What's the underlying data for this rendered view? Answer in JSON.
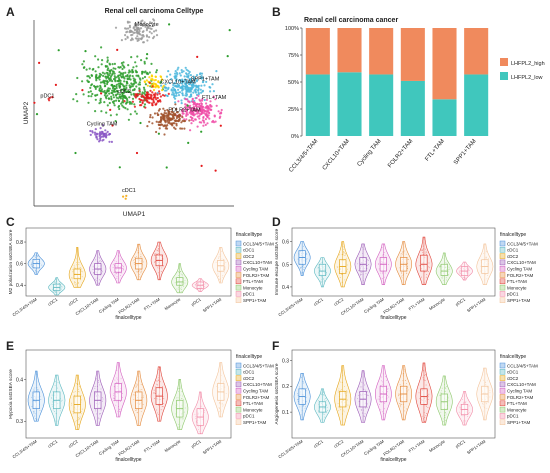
{
  "panel_letters": [
    "A",
    "B",
    "C",
    "D",
    "E",
    "F"
  ],
  "chart_data": [
    {
      "panel": "A",
      "type": "scatter",
      "title": "Renal cell carcinoma Celltype",
      "xlabel": "UMAP1",
      "ylabel": "UMAP2",
      "legend": "none",
      "cluster_labels": [
        "Monocyte",
        "CXCL10+TAM",
        "SPP1+TAM",
        "FTL+TAM",
        "cDC2",
        "FOLR2+TAM",
        "pDC1",
        "Cycling TAM",
        "cDC1"
      ],
      "clusters": [
        {
          "name": "Monocyte",
          "color": "#9b9b9b",
          "center": [
            0.7,
            5.7
          ],
          "spread": [
            0.9,
            0.55
          ],
          "n": 110
        },
        {
          "name": "cDC2",
          "color": "#2e9e2e",
          "center": [
            -0.6,
            2.2
          ],
          "spread": [
            1.8,
            1.3
          ],
          "n": 420
        },
        {
          "name": "CXCL10+TAM",
          "color": "#ffd200",
          "center": [
            1.5,
            2.4
          ],
          "spread": [
            0.45,
            0.4
          ],
          "n": 45
        },
        {
          "name": "SPP1+TAM",
          "color": "#4bb7dd",
          "center": [
            3.5,
            2.2
          ],
          "spread": [
            1.1,
            0.8
          ],
          "n": 230
        },
        {
          "name": "FTL+TAM",
          "color": "#f04fa8",
          "center": [
            4.3,
            0.5
          ],
          "spread": [
            1.0,
            0.7
          ],
          "n": 200
        },
        {
          "name": "FOLR2+TAM",
          "color": "#a0522d",
          "center": [
            2.4,
            0.1
          ],
          "spread": [
            0.9,
            0.6
          ],
          "n": 150
        },
        {
          "name": "CCL3/4/5+TAM",
          "color": "#e41a1c",
          "center": [
            1.2,
            1.4
          ],
          "spread": [
            0.8,
            0.5
          ],
          "n": 90
        },
        {
          "name": "Cycling TAM",
          "color": "#8a56c4",
          "center": [
            -1.8,
            -1.0
          ],
          "spread": [
            0.5,
            0.4
          ],
          "n": 50
        },
        {
          "name": "pDC1",
          "color": "#e41a1c",
          "center": [
            -5.0,
            1.3
          ],
          "spread": [
            0.15,
            0.15
          ],
          "n": 5
        },
        {
          "name": "cDC1",
          "color": "#f5a300",
          "center": [
            -0.3,
            -5.0
          ],
          "spread": [
            0.1,
            0.1
          ],
          "n": 3
        }
      ]
    },
    {
      "panel": "B",
      "type": "bar",
      "title": "Renal cell carcinoma cancer",
      "categories": [
        "CCL3/4/5+TAM",
        "CXCL10+TAM",
        "Cycling TAM",
        "FOLR2+TAM",
        "FTL+TAM",
        "SPP1+TAM"
      ],
      "y_ticks": [
        "0%",
        "25%",
        "50%",
        "75%",
        "100%"
      ],
      "ylim": [
        0,
        100
      ],
      "legend": "right",
      "series": [
        {
          "name": "LHFPL2_low",
          "color": "#40c7bd",
          "values": [
            57,
            59,
            57,
            51,
            34,
            57
          ]
        },
        {
          "name": "LHFPL2_high",
          "color": "#f08a5d",
          "values": [
            43,
            41,
            43,
            49,
            66,
            43
          ]
        }
      ]
    },
    {
      "panel": "C",
      "type": "violin",
      "xlabel": "finalcelltype",
      "ylabel": "M2 polarization ssGSEA score",
      "y_ticks": [
        0.4,
        0.6,
        0.8
      ],
      "ylim": [
        0.3,
        0.93
      ],
      "legend_title": "finalcelltype",
      "categories": [
        "CCL3/4/5+TAM",
        "cDC1",
        "cDC2",
        "CXCL10+TAM",
        "Cycling TAM",
        "FOLR2+TAM",
        "FTL+TAM",
        "Monocyte",
        "pDC1",
        "SPP1+TAM"
      ],
      "colors": [
        "#4a90d9",
        "#5bb8c0",
        "#e6a619",
        "#9b59b6",
        "#d35fc0",
        "#e48a3c",
        "#e0443a",
        "#8dc86b",
        "#f28ca8",
        "#f3c49b"
      ],
      "medians": [
        0.6,
        0.38,
        0.5,
        0.55,
        0.56,
        0.6,
        0.63,
        0.43,
        0.4,
        0.58
      ],
      "q1": [
        0.56,
        0.35,
        0.46,
        0.5,
        0.52,
        0.55,
        0.58,
        0.4,
        0.37,
        0.53
      ],
      "q3": [
        0.64,
        0.41,
        0.55,
        0.6,
        0.6,
        0.65,
        0.68,
        0.47,
        0.43,
        0.63
      ],
      "mins": [
        0.5,
        0.31,
        0.38,
        0.4,
        0.42,
        0.45,
        0.45,
        0.33,
        0.34,
        0.42
      ],
      "maxs": [
        0.7,
        0.47,
        0.75,
        0.72,
        0.72,
        0.78,
        0.8,
        0.6,
        0.46,
        0.75
      ]
    },
    {
      "panel": "D",
      "type": "violin",
      "xlabel": "finalcelltype",
      "ylabel": "Immune escape ssGSEA score",
      "y_ticks": [
        0.4,
        0.5,
        0.6
      ],
      "ylim": [
        0.36,
        0.66
      ],
      "legend_title": "finalcelltype",
      "categories": [
        "CCL3/4/5+TAM",
        "cDC1",
        "cDC2",
        "CXCL10+TAM",
        "Cycling TAM",
        "FOLR2+TAM",
        "FTL+TAM",
        "Monocyte",
        "pDC1",
        "SPP1+TAM"
      ],
      "colors": [
        "#4a90d9",
        "#5bb8c0",
        "#e6a619",
        "#9b59b6",
        "#d35fc0",
        "#e48a3c",
        "#e0443a",
        "#8dc86b",
        "#f28ca8",
        "#f3c49b"
      ],
      "medians": [
        0.53,
        0.47,
        0.49,
        0.5,
        0.5,
        0.5,
        0.5,
        0.47,
        0.47,
        0.49
      ],
      "q1": [
        0.5,
        0.45,
        0.46,
        0.47,
        0.47,
        0.47,
        0.47,
        0.45,
        0.45,
        0.46
      ],
      "q3": [
        0.56,
        0.5,
        0.52,
        0.53,
        0.53,
        0.53,
        0.54,
        0.5,
        0.49,
        0.52
      ],
      "mins": [
        0.45,
        0.4,
        0.4,
        0.41,
        0.41,
        0.41,
        0.41,
        0.41,
        0.43,
        0.41
      ],
      "maxs": [
        0.6,
        0.53,
        0.6,
        0.59,
        0.59,
        0.6,
        0.62,
        0.55,
        0.51,
        0.59
      ]
    },
    {
      "panel": "E",
      "type": "violin",
      "xlabel": "finalcelltype",
      "ylabel": "Hypoxia ssGSEA score",
      "y_ticks": [
        0.3,
        0.4
      ],
      "ylim": [
        0.26,
        0.47
      ],
      "legend_title": "finalcelltype",
      "categories": [
        "CCL3/4/5+TAM",
        "cDC1",
        "cDC2",
        "CXCL10+TAM",
        "Cycling TAM",
        "FOLR2+TAM",
        "FTL+TAM",
        "Monocyte",
        "pDC1",
        "SPP1+TAM"
      ],
      "colors": [
        "#4a90d9",
        "#5bb8c0",
        "#e6a619",
        "#9b59b6",
        "#d35fc0",
        "#e48a3c",
        "#e0443a",
        "#8dc86b",
        "#f28ca8",
        "#f3c49b"
      ],
      "medians": [
        0.35,
        0.35,
        0.34,
        0.35,
        0.37,
        0.35,
        0.36,
        0.33,
        0.31,
        0.37
      ],
      "q1": [
        0.33,
        0.33,
        0.32,
        0.33,
        0.35,
        0.33,
        0.34,
        0.31,
        0.29,
        0.35
      ],
      "q3": [
        0.37,
        0.37,
        0.36,
        0.37,
        0.39,
        0.37,
        0.38,
        0.35,
        0.33,
        0.39
      ],
      "mins": [
        0.3,
        0.29,
        0.28,
        0.29,
        0.31,
        0.29,
        0.3,
        0.28,
        0.27,
        0.31
      ],
      "maxs": [
        0.42,
        0.41,
        0.41,
        0.42,
        0.44,
        0.42,
        0.43,
        0.4,
        0.37,
        0.44
      ]
    },
    {
      "panel": "F",
      "type": "violin",
      "xlabel": "finalcelltype",
      "ylabel": "Angiogenesis ssGSEA score",
      "y_ticks": [
        0.1,
        0.2,
        0.3
      ],
      "ylim": [
        0.0,
        0.34
      ],
      "legend_title": "finalcelltype",
      "categories": [
        "CCL3/4/5+TAM",
        "cDC1",
        "cDC2",
        "CXCL10+TAM",
        "Cycling TAM",
        "FOLR2+TAM",
        "FTL+TAM",
        "Monocyte",
        "pDC1",
        "SPP1+TAM"
      ],
      "colors": [
        "#4a90d9",
        "#5bb8c0",
        "#e6a619",
        "#9b59b6",
        "#d35fc0",
        "#e48a3c",
        "#e0443a",
        "#8dc86b",
        "#f28ca8",
        "#f3c49b"
      ],
      "medians": [
        0.16,
        0.12,
        0.15,
        0.15,
        0.17,
        0.17,
        0.16,
        0.14,
        0.11,
        0.17
      ],
      "q1": [
        0.13,
        0.1,
        0.12,
        0.12,
        0.14,
        0.14,
        0.13,
        0.11,
        0.09,
        0.14
      ],
      "q3": [
        0.19,
        0.14,
        0.18,
        0.18,
        0.2,
        0.2,
        0.19,
        0.17,
        0.13,
        0.2
      ],
      "mins": [
        0.07,
        0.06,
        0.05,
        0.06,
        0.07,
        0.07,
        0.06,
        0.05,
        0.05,
        0.07
      ],
      "maxs": [
        0.25,
        0.19,
        0.28,
        0.26,
        0.28,
        0.28,
        0.29,
        0.24,
        0.18,
        0.27
      ]
    }
  ]
}
